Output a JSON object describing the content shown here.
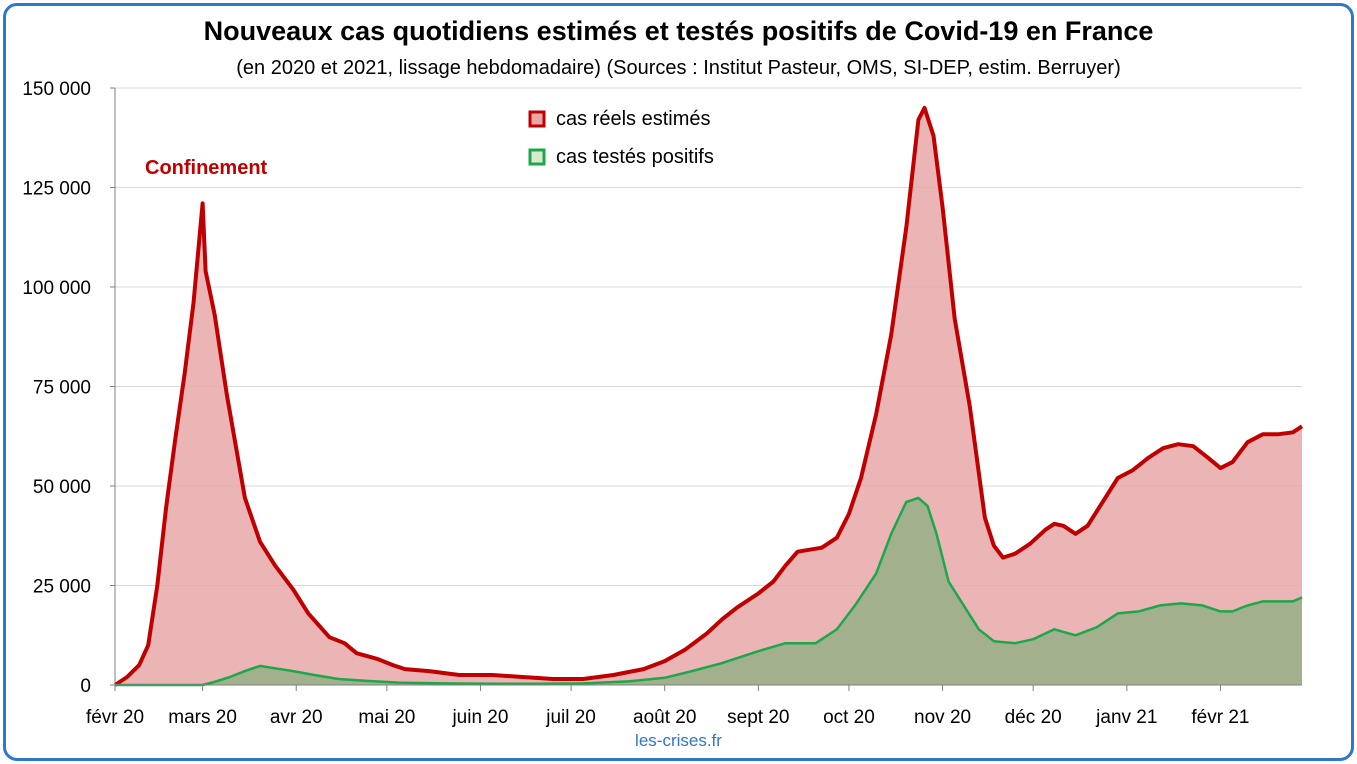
{
  "chart_data": {
    "type": "area",
    "title": "Nouveaux cas quotidiens estimés et testés positifs de Covid-19 en France",
    "subtitle": "(en 2020 et 2021, lissage hebdomadaire)  (Sources : Institut Pasteur, OMS, SI-DEP, estim. Berruyer)",
    "credit": "les-crises.fr",
    "annotation": "Confinement",
    "annotation_date": "2020-03-01",
    "grid": true,
    "legend_position": "top-center",
    "ylim": [
      0,
      150000
    ],
    "yticks": [
      0,
      25000,
      50000,
      75000,
      100000,
      125000,
      150000
    ],
    "ytick_labels": [
      "0",
      "25 000",
      "50 000",
      "75 000",
      "100 000",
      "125 000",
      "150 000"
    ],
    "xlim": [
      "2020-02-01",
      "2021-02-28"
    ],
    "xtick_dates": [
      "2020-02-01",
      "2020-03-01",
      "2020-04-01",
      "2020-05-01",
      "2020-06-01",
      "2020-07-01",
      "2020-08-01",
      "2020-09-01",
      "2020-10-01",
      "2020-11-01",
      "2020-12-01",
      "2021-01-01",
      "2021-02-01"
    ],
    "xtick_labels": [
      "févr 20",
      "mars 20",
      "avr 20",
      "mai 20",
      "juin 20",
      "juil 20",
      "août 20",
      "sept 20",
      "oct 20",
      "nov 20",
      "déc 20",
      "janv 21",
      "févr 21"
    ],
    "series": [
      {
        "name": "cas réels estimés",
        "line_color": "#c00000",
        "fill_color": "#e8a8a8",
        "points": [
          [
            "2020-02-01",
            0
          ],
          [
            "2020-02-05",
            2000
          ],
          [
            "2020-02-09",
            5000
          ],
          [
            "2020-02-12",
            10000
          ],
          [
            "2020-02-15",
            25000
          ],
          [
            "2020-02-18",
            45000
          ],
          [
            "2020-02-21",
            62000
          ],
          [
            "2020-02-24",
            78000
          ],
          [
            "2020-02-27",
            96000
          ],
          [
            "2020-03-01",
            121000
          ],
          [
            "2020-03-02",
            104000
          ],
          [
            "2020-03-05",
            93000
          ],
          [
            "2020-03-09",
            73000
          ],
          [
            "2020-03-15",
            47000
          ],
          [
            "2020-03-20",
            36000
          ],
          [
            "2020-03-25",
            30000
          ],
          [
            "2020-03-31",
            24000
          ],
          [
            "2020-04-05",
            18000
          ],
          [
            "2020-04-12",
            12000
          ],
          [
            "2020-04-17",
            10500
          ],
          [
            "2020-04-21",
            8000
          ],
          [
            "2020-04-28",
            6500
          ],
          [
            "2020-05-03",
            5000
          ],
          [
            "2020-05-07",
            4000
          ],
          [
            "2020-05-15",
            3500
          ],
          [
            "2020-05-25",
            2500
          ],
          [
            "2020-06-05",
            2500
          ],
          [
            "2020-06-15",
            2000
          ],
          [
            "2020-06-25",
            1500
          ],
          [
            "2020-07-05",
            1500
          ],
          [
            "2020-07-15",
            2500
          ],
          [
            "2020-07-25",
            4000
          ],
          [
            "2020-08-01",
            6000
          ],
          [
            "2020-08-08",
            9000
          ],
          [
            "2020-08-15",
            13000
          ],
          [
            "2020-08-20",
            16500
          ],
          [
            "2020-08-25",
            19500
          ],
          [
            "2020-09-01",
            23000
          ],
          [
            "2020-09-06",
            26000
          ],
          [
            "2020-09-10",
            30000
          ],
          [
            "2020-09-14",
            33500
          ],
          [
            "2020-09-18",
            34000
          ],
          [
            "2020-09-22",
            34500
          ],
          [
            "2020-09-27",
            37000
          ],
          [
            "2020-10-01",
            43000
          ],
          [
            "2020-10-05",
            52000
          ],
          [
            "2020-10-10",
            68000
          ],
          [
            "2020-10-15",
            88000
          ],
          [
            "2020-10-20",
            115000
          ],
          [
            "2020-10-24",
            142000
          ],
          [
            "2020-10-26",
            145000
          ],
          [
            "2020-10-29",
            138000
          ],
          [
            "2020-11-01",
            120000
          ],
          [
            "2020-11-05",
            92000
          ],
          [
            "2020-11-10",
            70000
          ],
          [
            "2020-11-15",
            42000
          ],
          [
            "2020-11-18",
            35000
          ],
          [
            "2020-11-21",
            32000
          ],
          [
            "2020-11-25",
            33000
          ],
          [
            "2020-11-30",
            35500
          ],
          [
            "2020-12-05",
            39000
          ],
          [
            "2020-12-08",
            40500
          ],
          [
            "2020-12-11",
            40000
          ],
          [
            "2020-12-15",
            38000
          ],
          [
            "2020-12-19",
            40000
          ],
          [
            "2020-12-24",
            46000
          ],
          [
            "2020-12-29",
            52000
          ],
          [
            "2021-01-03",
            54000
          ],
          [
            "2021-01-08",
            57000
          ],
          [
            "2021-01-13",
            59500
          ],
          [
            "2021-01-18",
            60500
          ],
          [
            "2021-01-23",
            60000
          ],
          [
            "2021-01-28",
            57000
          ],
          [
            "2021-02-01",
            54500
          ],
          [
            "2021-02-05",
            56000
          ],
          [
            "2021-02-10",
            61000
          ],
          [
            "2021-02-15",
            63000
          ],
          [
            "2021-02-20",
            63000
          ],
          [
            "2021-02-25",
            63500
          ],
          [
            "2021-02-28",
            65000
          ]
        ]
      },
      {
        "name": "cas testés positifs",
        "line_color": "#1ca84a",
        "fill_color": "#9aaf8a",
        "points": [
          [
            "2020-02-01",
            0
          ],
          [
            "2020-03-01",
            0
          ],
          [
            "2020-03-05",
            800
          ],
          [
            "2020-03-10",
            2000
          ],
          [
            "2020-03-15",
            3500
          ],
          [
            "2020-03-20",
            4800
          ],
          [
            "2020-03-25",
            4200
          ],
          [
            "2020-03-31",
            3500
          ],
          [
            "2020-04-07",
            2500
          ],
          [
            "2020-04-15",
            1500
          ],
          [
            "2020-04-25",
            1000
          ],
          [
            "2020-05-05",
            600
          ],
          [
            "2020-05-20",
            400
          ],
          [
            "2020-06-05",
            300
          ],
          [
            "2020-06-20",
            300
          ],
          [
            "2020-07-05",
            400
          ],
          [
            "2020-07-20",
            900
          ],
          [
            "2020-08-01",
            1800
          ],
          [
            "2020-08-10",
            3500
          ],
          [
            "2020-08-20",
            5500
          ],
          [
            "2020-09-01",
            8500
          ],
          [
            "2020-09-10",
            10500
          ],
          [
            "2020-09-15",
            10500
          ],
          [
            "2020-09-20",
            10500
          ],
          [
            "2020-09-27",
            14000
          ],
          [
            "2020-10-03",
            20000
          ],
          [
            "2020-10-10",
            28000
          ],
          [
            "2020-10-15",
            38000
          ],
          [
            "2020-10-20",
            46000
          ],
          [
            "2020-10-24",
            47000
          ],
          [
            "2020-10-27",
            45000
          ],
          [
            "2020-10-30",
            38000
          ],
          [
            "2020-11-03",
            26000
          ],
          [
            "2020-11-08",
            20000
          ],
          [
            "2020-11-13",
            14000
          ],
          [
            "2020-11-18",
            11000
          ],
          [
            "2020-11-25",
            10500
          ],
          [
            "2020-12-01",
            11500
          ],
          [
            "2020-12-08",
            14000
          ],
          [
            "2020-12-15",
            12500
          ],
          [
            "2020-12-22",
            14500
          ],
          [
            "2020-12-29",
            18000
          ],
          [
            "2021-01-05",
            18500
          ],
          [
            "2021-01-12",
            20000
          ],
          [
            "2021-01-19",
            20500
          ],
          [
            "2021-01-26",
            20000
          ],
          [
            "2021-02-01",
            18500
          ],
          [
            "2021-02-05",
            18500
          ],
          [
            "2021-02-10",
            20000
          ],
          [
            "2021-02-15",
            21000
          ],
          [
            "2021-02-20",
            21000
          ],
          [
            "2021-02-25",
            21000
          ],
          [
            "2021-02-28",
            22000
          ]
        ]
      }
    ]
  }
}
